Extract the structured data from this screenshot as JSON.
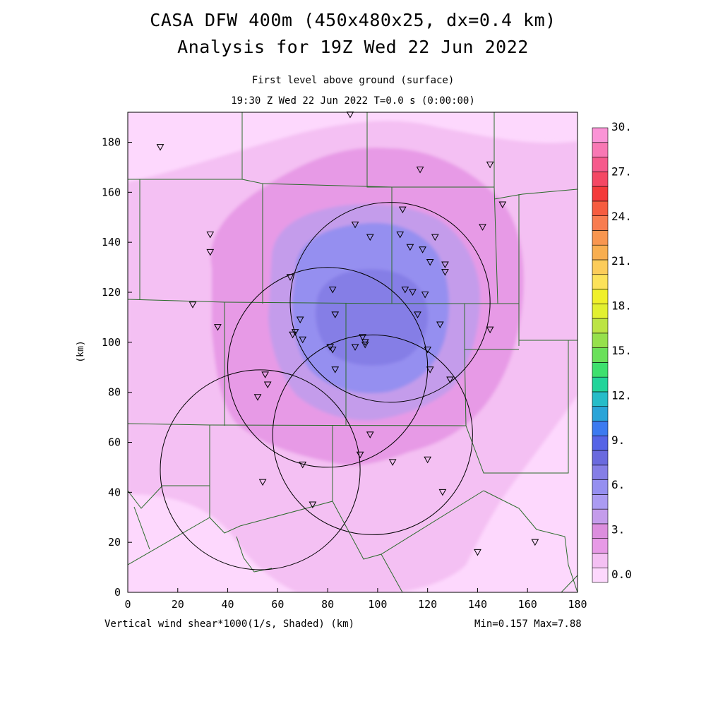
{
  "title_line1": "CASA DFW 400m (450x480x25, dx=0.4 km)",
  "title_line2": "Analysis for 19Z Wed 22 Jun 2022",
  "subtitle_line1": "First level above ground (surface)",
  "subtitle_line2": "19:30 Z Wed 22 Jun 2022   T=0.0 s (0:00:00)",
  "field_label": "Vertical wind shear*1000(1/s, Shaded)",
  "x_unit": "(km)",
  "y_unit": "(km)",
  "min_max": "Min=0.157 Max=7.88",
  "x_ticks": [
    "0",
    "20",
    "40",
    "60",
    "80",
    "100",
    "120",
    "140",
    "160",
    "180"
  ],
  "y_ticks": [
    "0",
    "20",
    "40",
    "60",
    "80",
    "100",
    "120",
    "140",
    "160",
    "180"
  ],
  "colorbar_labels": [
    "0.0",
    "3.",
    "6.",
    "9.",
    "12.",
    "15.",
    "18.",
    "21.",
    "24.",
    "27.",
    "30."
  ],
  "colorbar_colors": [
    "#fdd8fd",
    "#f4c0f3",
    "#e79ae6",
    "#dc8ede",
    "#c49ceb",
    "#ab9bf2",
    "#958ff0",
    "#857ee6",
    "#6a6ade",
    "#5664e6",
    "#3c7af0",
    "#2aa4d8",
    "#26bcc8",
    "#22d49a",
    "#3ee06e",
    "#6ae05a",
    "#96e04c",
    "#bce444",
    "#e2f030",
    "#f0f02a",
    "#fce25a",
    "#fccc5a",
    "#f8ae50",
    "#f89650",
    "#f87c50",
    "#f65c40",
    "#f43a3a",
    "#f44864",
    "#f65a8c",
    "#f878b4",
    "#fa94d6"
  ],
  "palette": {
    "background": "#fdd8fd",
    "level1": "#f4c0f3",
    "level2": "#e79ae6",
    "level3": "#c49ceb",
    "level4": "#958ff0",
    "level5": "#857ee6",
    "county_lines": "#2b6b2b",
    "radar_rings": "#000000"
  },
  "radar_rings_km": [
    [
      105,
      116,
      40
    ],
    [
      80,
      90,
      40
    ],
    [
      98,
      63,
      40
    ],
    [
      53,
      49,
      40
    ]
  ],
  "stations_km": [
    [
      13,
      178
    ],
    [
      89,
      191
    ],
    [
      117,
      169
    ],
    [
      145,
      171
    ],
    [
      150,
      155
    ],
    [
      142,
      146
    ],
    [
      33,
      143
    ],
    [
      33,
      136
    ],
    [
      26,
      115
    ],
    [
      36,
      106
    ],
    [
      65,
      126
    ],
    [
      91,
      147
    ],
    [
      97,
      142
    ],
    [
      109,
      143
    ],
    [
      113,
      138
    ],
    [
      118,
      137
    ],
    [
      123,
      142
    ],
    [
      121,
      132
    ],
    [
      127,
      131
    ],
    [
      127,
      128
    ],
    [
      110,
      153
    ],
    [
      111,
      121
    ],
    [
      114,
      120
    ],
    [
      119,
      119
    ],
    [
      116,
      111
    ],
    [
      125,
      107
    ],
    [
      145,
      105
    ],
    [
      82,
      121
    ],
    [
      83,
      111
    ],
    [
      69,
      109
    ],
    [
      67,
      104
    ],
    [
      66,
      103
    ],
    [
      70,
      101
    ],
    [
      81,
      98
    ],
    [
      82,
      97
    ],
    [
      91,
      98
    ],
    [
      94,
      102
    ],
    [
      95,
      100
    ],
    [
      95,
      99
    ],
    [
      120,
      97
    ],
    [
      121,
      89
    ],
    [
      129,
      85
    ],
    [
      83,
      89
    ],
    [
      55,
      87
    ],
    [
      56,
      83
    ],
    [
      52,
      78
    ],
    [
      97,
      63
    ],
    [
      93,
      55
    ],
    [
      106,
      52
    ],
    [
      120,
      53
    ],
    [
      126,
      40
    ],
    [
      70,
      51
    ],
    [
      54,
      44
    ],
    [
      74,
      35
    ],
    [
      140,
      16
    ],
    [
      163,
      20
    ]
  ]
}
